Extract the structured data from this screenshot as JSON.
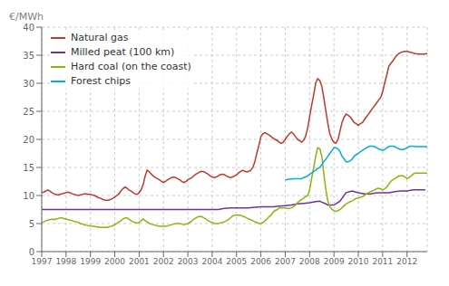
{
  "chart_data": {
    "type": "line",
    "ylabel": "€/MWh",
    "xlim": [
      1997,
      2012.83
    ],
    "ylim": [
      0,
      40
    ],
    "yticks": [
      0,
      5,
      10,
      15,
      20,
      25,
      30,
      35,
      40
    ],
    "xticks": [
      1997,
      1998,
      1999,
      2000,
      2001,
      2002,
      2003,
      2004,
      2005,
      2006,
      2007,
      2008,
      2009,
      2010,
      2011,
      2012
    ],
    "grid": true,
    "legend": "upper left",
    "series": [
      {
        "name": "Natural gas",
        "color": "#c0392b",
        "x": [
          1997.0,
          1997.08,
          1997.17,
          1997.25,
          1997.33,
          1997.42,
          1997.5,
          1997.58,
          1997.67,
          1997.75,
          1997.83,
          1997.92,
          1998.0,
          1998.08,
          1998.17,
          1998.25,
          1998.33,
          1998.42,
          1998.5,
          1998.58,
          1998.67,
          1998.75,
          1998.83,
          1998.92,
          1999.0,
          1999.08,
          1999.17,
          1999.25,
          1999.33,
          1999.42,
          1999.5,
          1999.58,
          1999.67,
          1999.75,
          1999.83,
          1999.92,
          2000.0,
          2000.08,
          2000.17,
          2000.25,
          2000.33,
          2000.42,
          2000.5,
          2000.58,
          2000.67,
          2000.75,
          2000.83,
          2000.92,
          2001.0,
          2001.08,
          2001.17,
          2001.25,
          2001.33,
          2001.42,
          2001.5,
          2001.58,
          2001.67,
          2001.75,
          2001.83,
          2001.92,
          2002.0,
          2002.08,
          2002.17,
          2002.25,
          2002.33,
          2002.42,
          2002.5,
          2002.58,
          2002.67,
          2002.75,
          2002.83,
          2002.92,
          2003.0,
          2003.08,
          2003.17,
          2003.25,
          2003.33,
          2003.42,
          2003.5,
          2003.58,
          2003.67,
          2003.75,
          2003.83,
          2003.92,
          2004.0,
          2004.08,
          2004.17,
          2004.25,
          2004.33,
          2004.42,
          2004.5,
          2004.58,
          2004.67,
          2004.75,
          2004.83,
          2004.92,
          2005.0,
          2005.08,
          2005.17,
          2005.25,
          2005.33,
          2005.42,
          2005.5,
          2005.58,
          2005.67,
          2005.75,
          2005.83,
          2005.92,
          2006.0,
          2006.08,
          2006.17,
          2006.25,
          2006.33,
          2006.42,
          2006.5,
          2006.58,
          2006.67,
          2006.75,
          2006.83,
          2006.92,
          2007.0,
          2007.08,
          2007.17,
          2007.25,
          2007.33,
          2007.42,
          2007.5,
          2007.58,
          2007.67,
          2007.75,
          2007.83,
          2007.92,
          2008.0,
          2008.08,
          2008.17,
          2008.25,
          2008.33,
          2008.42,
          2008.5,
          2008.58,
          2008.67,
          2008.75,
          2008.83,
          2008.92,
          2009.0,
          2009.08,
          2009.17,
          2009.25,
          2009.33,
          2009.42,
          2009.5,
          2009.58,
          2009.67,
          2009.75,
          2009.83,
          2009.92,
          2010.0,
          2010.08,
          2010.17,
          2010.25,
          2010.33,
          2010.42,
          2010.5,
          2010.58,
          2010.67,
          2010.75,
          2010.83,
          2010.92,
          2011.0,
          2011.08,
          2011.17,
          2011.25,
          2011.33,
          2011.42,
          2011.5,
          2011.58,
          2011.67,
          2011.75,
          2011.83,
          2011.92,
          2012.0,
          2012.08,
          2012.17,
          2012.25,
          2012.33,
          2012.5,
          2012.67,
          2012.83
        ],
        "values": [
          10.5,
          10.6,
          10.8,
          11.0,
          10.8,
          10.5,
          10.3,
          10.2,
          10.1,
          10.2,
          10.3,
          10.4,
          10.5,
          10.6,
          10.5,
          10.3,
          10.2,
          10.1,
          10.0,
          10.1,
          10.2,
          10.3,
          10.3,
          10.2,
          10.2,
          10.1,
          10.0,
          9.8,
          9.6,
          9.5,
          9.3,
          9.2,
          9.1,
          9.2,
          9.3,
          9.5,
          9.7,
          10.0,
          10.3,
          10.8,
          11.2,
          11.5,
          11.3,
          11.0,
          10.8,
          10.5,
          10.3,
          10.2,
          10.5,
          11.0,
          12.0,
          13.5,
          14.5,
          14.2,
          13.8,
          13.5,
          13.2,
          13.0,
          12.8,
          12.5,
          12.3,
          12.5,
          12.8,
          13.0,
          13.2,
          13.3,
          13.2,
          13.0,
          12.8,
          12.5,
          12.3,
          12.5,
          12.8,
          13.0,
          13.2,
          13.5,
          13.8,
          14.0,
          14.2,
          14.3,
          14.2,
          14.0,
          13.8,
          13.5,
          13.3,
          13.2,
          13.3,
          13.5,
          13.7,
          13.8,
          13.7,
          13.5,
          13.3,
          13.2,
          13.3,
          13.5,
          13.7,
          14.0,
          14.3,
          14.5,
          14.3,
          14.2,
          14.3,
          14.5,
          15.0,
          16.0,
          17.5,
          19.0,
          20.5,
          21.0,
          21.2,
          21.0,
          20.8,
          20.5,
          20.2,
          20.0,
          19.8,
          19.5,
          19.3,
          19.5,
          20.0,
          20.5,
          21.0,
          21.3,
          21.0,
          20.5,
          20.0,
          19.8,
          19.5,
          19.8,
          20.5,
          22.0,
          24.0,
          26.0,
          28.0,
          30.0,
          30.8,
          30.5,
          29.5,
          27.5,
          25.0,
          22.8,
          21.0,
          20.0,
          19.5,
          19.3,
          20.0,
          21.5,
          23.0,
          24.0,
          24.5,
          24.3,
          24.0,
          23.5,
          23.0,
          22.8,
          22.5,
          22.8,
          23.0,
          23.5,
          24.0,
          24.5,
          25.0,
          25.5,
          26.0,
          26.5,
          27.0,
          27.5,
          28.5,
          30.0,
          31.5,
          33.0,
          33.5,
          34.0,
          34.5,
          35.0,
          35.3,
          35.5,
          35.6,
          35.7,
          35.7,
          35.6,
          35.5,
          35.4,
          35.3,
          35.2,
          35.2,
          35.3
        ]
      },
      {
        "name": "Milled peat (100 km)",
        "color": "#7030a0",
        "x": [
          1997.0,
          1997.25,
          1997.5,
          1997.75,
          1998.0,
          1998.25,
          1998.5,
          1998.75,
          1999.0,
          1999.25,
          1999.5,
          1999.75,
          2000.0,
          2000.25,
          2000.5,
          2000.75,
          2001.0,
          2001.25,
          2001.5,
          2001.75,
          2002.0,
          2002.25,
          2002.5,
          2002.75,
          2003.0,
          2003.25,
          2003.5,
          2003.75,
          2004.0,
          2004.25,
          2004.5,
          2004.75,
          2005.0,
          2005.25,
          2005.5,
          2005.75,
          2006.0,
          2006.25,
          2006.5,
          2006.75,
          2007.0,
          2007.25,
          2007.5,
          2007.75,
          2008.0,
          2008.25,
          2008.42,
          2008.5,
          2008.67,
          2008.75,
          2009.0,
          2009.25,
          2009.5,
          2009.75,
          2010.0,
          2010.25,
          2010.5,
          2010.75,
          2011.0,
          2011.25,
          2011.5,
          2011.75,
          2012.0,
          2012.25,
          2012.5,
          2012.75
        ],
        "values": [
          7.5,
          7.5,
          7.5,
          7.5,
          7.5,
          7.5,
          7.5,
          7.5,
          7.5,
          7.5,
          7.5,
          7.5,
          7.5,
          7.5,
          7.5,
          7.5,
          7.5,
          7.5,
          7.5,
          7.5,
          7.5,
          7.5,
          7.5,
          7.5,
          7.5,
          7.5,
          7.5,
          7.5,
          7.5,
          7.5,
          7.7,
          7.8,
          7.8,
          7.8,
          7.8,
          7.9,
          8.0,
          8.0,
          8.0,
          8.1,
          8.2,
          8.3,
          8.5,
          8.6,
          8.7,
          8.9,
          9.0,
          8.8,
          8.5,
          8.3,
          8.3,
          9.0,
          10.5,
          10.8,
          10.5,
          10.3,
          10.3,
          10.5,
          10.5,
          10.5,
          10.7,
          10.8,
          10.8,
          11.0,
          11.0,
          11.0
        ]
      },
      {
        "name": "Hard coal (on the coast)",
        "color": "#8db510",
        "x": [
          1997.0,
          1997.08,
          1997.17,
          1997.25,
          1997.33,
          1997.42,
          1997.5,
          1997.58,
          1997.67,
          1997.75,
          1997.83,
          1997.92,
          1998.0,
          1998.08,
          1998.17,
          1998.25,
          1998.33,
          1998.42,
          1998.5,
          1998.58,
          1998.67,
          1998.75,
          1998.83,
          1998.92,
          1999.0,
          1999.08,
          1999.17,
          1999.25,
          1999.33,
          1999.42,
          1999.5,
          1999.58,
          1999.67,
          1999.75,
          1999.83,
          1999.92,
          2000.0,
          2000.08,
          2000.17,
          2000.25,
          2000.33,
          2000.42,
          2000.5,
          2000.58,
          2000.67,
          2000.75,
          2000.83,
          2000.92,
          2001.0,
          2001.08,
          2001.17,
          2001.25,
          2001.33,
          2001.42,
          2001.5,
          2001.58,
          2001.67,
          2001.75,
          2001.83,
          2001.92,
          2002.0,
          2002.08,
          2002.17,
          2002.25,
          2002.33,
          2002.42,
          2002.5,
          2002.58,
          2002.67,
          2002.75,
          2002.83,
          2002.92,
          2003.0,
          2003.08,
          2003.17,
          2003.25,
          2003.33,
          2003.42,
          2003.5,
          2003.58,
          2003.67,
          2003.75,
          2003.83,
          2003.92,
          2004.0,
          2004.08,
          2004.17,
          2004.25,
          2004.33,
          2004.42,
          2004.5,
          2004.58,
          2004.67,
          2004.75,
          2004.83,
          2004.92,
          2005.0,
          2005.08,
          2005.17,
          2005.25,
          2005.33,
          2005.42,
          2005.5,
          2005.58,
          2005.67,
          2005.75,
          2005.83,
          2005.92,
          2006.0,
          2006.08,
          2006.17,
          2006.25,
          2006.33,
          2006.42,
          2006.5,
          2006.58,
          2006.67,
          2006.75,
          2006.83,
          2006.92,
          2007.0,
          2007.08,
          2007.17,
          2007.25,
          2007.33,
          2007.42,
          2007.5,
          2007.58,
          2007.67,
          2007.75,
          2007.83,
          2007.92,
          2008.0,
          2008.08,
          2008.17,
          2008.25,
          2008.33,
          2008.42,
          2008.5,
          2008.58,
          2008.67,
          2008.75,
          2008.83,
          2008.92,
          2009.0,
          2009.08,
          2009.17,
          2009.25,
          2009.33,
          2009.42,
          2009.5,
          2009.58,
          2009.67,
          2009.75,
          2009.83,
          2009.92,
          2010.0,
          2010.08,
          2010.17,
          2010.25,
          2010.33,
          2010.42,
          2010.5,
          2010.58,
          2010.67,
          2010.75,
          2010.83,
          2010.92,
          2011.0,
          2011.08,
          2011.17,
          2011.25,
          2011.33,
          2011.42,
          2011.5,
          2011.58,
          2011.67,
          2011.75,
          2011.83,
          2011.92,
          2012.0,
          2012.08,
          2012.17,
          2012.25,
          2012.33,
          2012.5,
          2012.67,
          2012.83
        ],
        "values": [
          5.2,
          5.3,
          5.5,
          5.6,
          5.7,
          5.8,
          5.7,
          5.8,
          5.9,
          6.0,
          6.0,
          5.9,
          5.8,
          5.7,
          5.6,
          5.5,
          5.4,
          5.3,
          5.2,
          5.0,
          4.9,
          4.8,
          4.7,
          4.6,
          4.6,
          4.5,
          4.5,
          4.4,
          4.4,
          4.3,
          4.3,
          4.3,
          4.3,
          4.4,
          4.5,
          4.6,
          4.8,
          5.0,
          5.3,
          5.5,
          5.8,
          6.0,
          6.0,
          5.8,
          5.5,
          5.3,
          5.2,
          5.1,
          5.2,
          5.5,
          5.8,
          5.5,
          5.3,
          5.0,
          4.9,
          4.8,
          4.7,
          4.6,
          4.5,
          4.5,
          4.5,
          4.5,
          4.6,
          4.7,
          4.8,
          4.9,
          5.0,
          5.0,
          5.0,
          4.9,
          4.8,
          4.9,
          5.0,
          5.2,
          5.5,
          5.8,
          6.0,
          6.2,
          6.3,
          6.2,
          6.0,
          5.8,
          5.5,
          5.3,
          5.2,
          5.0,
          5.0,
          5.0,
          5.1,
          5.2,
          5.3,
          5.5,
          5.7,
          6.0,
          6.3,
          6.5,
          6.5,
          6.5,
          6.5,
          6.3,
          6.2,
          6.0,
          5.8,
          5.7,
          5.5,
          5.3,
          5.2,
          5.0,
          5.0,
          5.2,
          5.5,
          5.8,
          6.2,
          6.5,
          7.0,
          7.3,
          7.5,
          7.8,
          7.8,
          7.8,
          7.8,
          7.7,
          7.7,
          7.8,
          8.0,
          8.3,
          8.7,
          9.0,
          9.3,
          9.5,
          9.8,
          10.0,
          11.0,
          13.0,
          15.0,
          17.0,
          18.5,
          18.3,
          17.0,
          14.0,
          11.0,
          9.0,
          8.0,
          7.5,
          7.3,
          7.2,
          7.3,
          7.5,
          7.8,
          8.2,
          8.5,
          8.7,
          8.9,
          9.0,
          9.3,
          9.5,
          9.5,
          9.7,
          9.8,
          10.0,
          10.3,
          10.5,
          10.7,
          10.8,
          11.0,
          11.2,
          11.3,
          11.2,
          11.0,
          11.2,
          11.5,
          12.0,
          12.5,
          12.8,
          13.0,
          13.2,
          13.5,
          13.5,
          13.5,
          13.3,
          13.0,
          13.2,
          13.5,
          13.8,
          14.0,
          14.0,
          14.0,
          14.0
        ]
      },
      {
        "name": "Forest chips",
        "color": "#00b0d8",
        "x": [
          2007.0,
          2007.17,
          2007.33,
          2007.5,
          2007.67,
          2007.75,
          2007.83,
          2007.92,
          2008.0,
          2008.08,
          2008.17,
          2008.25,
          2008.33,
          2008.42,
          2008.5,
          2008.58,
          2008.67,
          2008.75,
          2008.83,
          2008.92,
          2009.0,
          2009.08,
          2009.17,
          2009.25,
          2009.33,
          2009.42,
          2009.5,
          2009.58,
          2009.67,
          2009.75,
          2009.83,
          2009.92,
          2010.0,
          2010.08,
          2010.17,
          2010.25,
          2010.33,
          2010.42,
          2010.5,
          2010.58,
          2010.67,
          2010.75,
          2010.83,
          2010.92,
          2011.0,
          2011.08,
          2011.17,
          2011.25,
          2011.33,
          2011.42,
          2011.5,
          2011.58,
          2011.67,
          2011.75,
          2011.83,
          2011.92,
          2012.0,
          2012.08,
          2012.17,
          2012.25,
          2012.33,
          2012.5,
          2012.67,
          2012.83
        ],
        "values": [
          12.8,
          12.9,
          13.0,
          13.0,
          13.0,
          13.2,
          13.3,
          13.5,
          13.8,
          14.0,
          14.3,
          14.5,
          14.8,
          15.0,
          15.5,
          16.0,
          16.5,
          17.0,
          17.5,
          18.0,
          18.5,
          18.5,
          18.3,
          17.8,
          17.0,
          16.5,
          16.0,
          16.0,
          16.2,
          16.5,
          17.0,
          17.3,
          17.5,
          17.8,
          18.0,
          18.3,
          18.5,
          18.7,
          18.8,
          18.8,
          18.7,
          18.5,
          18.3,
          18.2,
          18.0,
          18.2,
          18.5,
          18.7,
          18.8,
          18.8,
          18.7,
          18.5,
          18.3,
          18.2,
          18.2,
          18.3,
          18.5,
          18.7,
          18.8,
          18.8,
          18.7,
          18.7,
          18.7,
          18.7
        ]
      }
    ]
  }
}
